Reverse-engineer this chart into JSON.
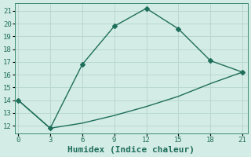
{
  "xlabel": "Humidex (Indice chaleur)",
  "bg_color": "#d4ece6",
  "grid_color": "#b8d8d0",
  "line_color": "#1e6e5a",
  "spine_color": "#3a8a70",
  "x_ticks": [
    0,
    3,
    6,
    9,
    12,
    15,
    18,
    21
  ],
  "y_ticks": [
    12,
    13,
    14,
    15,
    16,
    17,
    18,
    19,
    20,
    21
  ],
  "xlim": [
    -0.3,
    21.5
  ],
  "ylim": [
    11.4,
    21.6
  ],
  "series1_x": [
    0,
    3,
    6,
    9,
    12,
    15,
    18,
    21
  ],
  "series1_y": [
    14.0,
    11.8,
    16.8,
    19.8,
    21.2,
    19.6,
    17.1,
    16.2
  ],
  "series2_x": [
    0,
    3,
    6,
    9,
    12,
    15,
    18,
    21
  ],
  "series2_y": [
    14.0,
    11.8,
    12.2,
    12.8,
    13.5,
    14.3,
    15.3,
    16.2
  ],
  "marker": "D",
  "marker_size": 3.0,
  "line_width": 1.0,
  "tick_fontsize": 6.5,
  "xlabel_fontsize": 8.0
}
